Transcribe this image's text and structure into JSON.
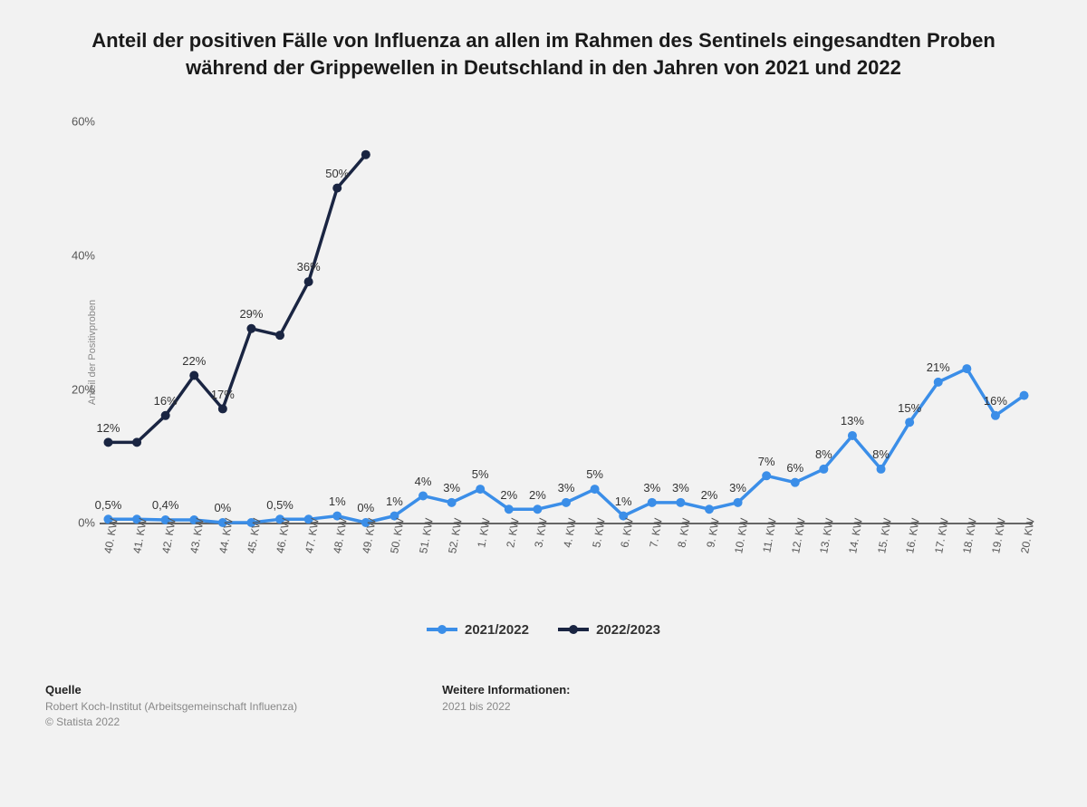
{
  "title": "Anteil der positiven Fälle von Influenza an allen im Rahmen des Sentinels eingesandten Proben während der Grippewellen in Deutschland in den Jahren von 2021 und 2022",
  "ylabel": "Anteil der Positivproben",
  "chart": {
    "type": "line",
    "background_color": "#f2f2f2",
    "axis_color": "#666666",
    "ylim": [
      0,
      62
    ],
    "yticks": [
      0,
      20,
      40,
      60
    ],
    "ytick_labels": [
      "0%",
      "20%",
      "40%",
      "60%"
    ],
    "categories": [
      "40. KW",
      "41. KW",
      "42. KW",
      "43. KW",
      "44. KW",
      "45. KW",
      "46. KW",
      "47. KW",
      "48. KW",
      "49. KW",
      "50. KW",
      "51. KW",
      "52. KW",
      "1. KW",
      "2. KW",
      "3. KW",
      "4. KW",
      "5. KW",
      "6. KW",
      "7. KW",
      "8. KW",
      "9. KW",
      "10. KW",
      "11. KW",
      "12. KW",
      "13. KW",
      "14. KW",
      "15. KW",
      "16. KW",
      "17. KW",
      "18. KW",
      "19. KW",
      "20. KW"
    ],
    "series": [
      {
        "name": "2021/2022",
        "color": "#3b8ee8",
        "line_width": 3.5,
        "marker_size": 5,
        "values": [
          0.5,
          0.5,
          0.4,
          0.4,
          0,
          0,
          0.5,
          0.5,
          1,
          0,
          1,
          4,
          3,
          5,
          2,
          2,
          3,
          5,
          1,
          3,
          3,
          2,
          3,
          7,
          6,
          8,
          13,
          8,
          15,
          21,
          23,
          16,
          19
        ],
        "point_labels": [
          "0,5%",
          "",
          "0,4%",
          "",
          "0%",
          "",
          "0,5%",
          "",
          "1%",
          "0%",
          "1%",
          "4%",
          "3%",
          "5%",
          "2%",
          "2%",
          "3%",
          "5%",
          "1%",
          "3%",
          "3%",
          "2%",
          "3%",
          "7%",
          "6%",
          "8%",
          "13%",
          "8%",
          "15%",
          "21%",
          "",
          "16%",
          ""
        ]
      },
      {
        "name": "2022/2023",
        "color": "#1a2542",
        "line_width": 3.5,
        "marker_size": 5,
        "values": [
          12,
          12,
          16,
          22,
          17,
          29,
          28,
          36,
          50,
          55
        ],
        "point_labels": [
          "12%",
          "",
          "16%",
          "22%",
          "17%",
          "29%",
          "",
          "36%",
          "50%",
          ""
        ]
      }
    ]
  },
  "legend": [
    "2021/2022",
    "2022/2023"
  ],
  "footer": {
    "source_hd": "Quelle",
    "source_txt": "Robert Koch-Institut (Arbeitsgemeinschaft Influenza)\n© Statista 2022",
    "info_hd": "Weitere Informationen:",
    "info_txt": "2021 bis 2022"
  }
}
